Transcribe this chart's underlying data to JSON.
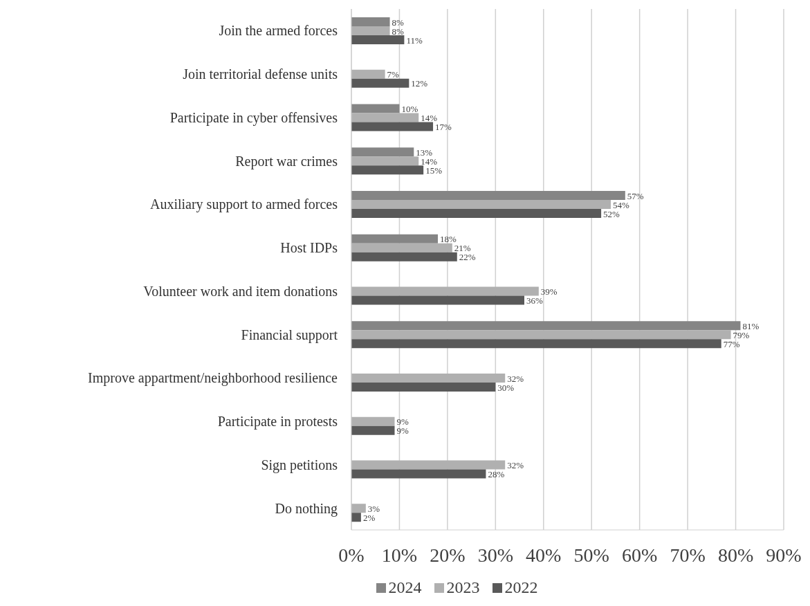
{
  "chart_data": {
    "type": "bar",
    "orientation": "horizontal",
    "categories": [
      "Join the armed forces",
      "Join territorial defense units",
      "Participate in cyber offensives",
      "Report war crimes",
      "Auxiliary support to armed forces",
      "Host IDPs",
      "Volunteer work and item donations",
      "Financial support",
      "Improve appartment/neighborhood resilience",
      "Participate in protests",
      "Sign petitions",
      "Do nothing"
    ],
    "series": [
      {
        "name": "2024",
        "color": "#858585",
        "values": [
          8,
          null,
          10,
          13,
          57,
          18,
          null,
          81,
          null,
          null,
          null,
          null
        ],
        "value_labels": [
          "8%",
          null,
          "10%",
          "13%",
          "57%",
          "18%",
          null,
          "81%",
          null,
          null,
          null,
          null
        ]
      },
      {
        "name": "2023",
        "color": "#b0b0b0",
        "values": [
          8,
          7,
          14,
          14,
          54,
          21,
          39,
          79,
          32,
          9,
          32,
          3
        ],
        "value_labels": [
          "8%",
          "7%",
          "14%",
          "14%",
          "54%",
          "21%",
          "39%",
          "79%",
          "32%",
          "9%",
          "32%",
          "3%"
        ]
      },
      {
        "name": "2022",
        "color": "#595959",
        "values": [
          11,
          12,
          17,
          15,
          52,
          22,
          36,
          77,
          30,
          9,
          28,
          2
        ],
        "value_labels": [
          "11%",
          "12%",
          "17%",
          "15%",
          "52%",
          "22%",
          "36%",
          "77%",
          "30%",
          "9%",
          "28%",
          "2%"
        ]
      }
    ],
    "xlim": [
      0,
      90
    ],
    "xticks": [
      {
        "value": 0,
        "label": "0%"
      },
      {
        "value": 10,
        "label": "10%"
      },
      {
        "value": 20,
        "label": "20%"
      },
      {
        "value": 30,
        "label": "30%"
      },
      {
        "value": 40,
        "label": "40%"
      },
      {
        "value": 50,
        "label": "50%"
      },
      {
        "value": 60,
        "label": "60%"
      },
      {
        "value": 70,
        "label": "70%"
      },
      {
        "value": 80,
        "label": "80%"
      },
      {
        "value": 90,
        "label": "90%"
      }
    ],
    "grid": "x",
    "legend": "bottom"
  }
}
